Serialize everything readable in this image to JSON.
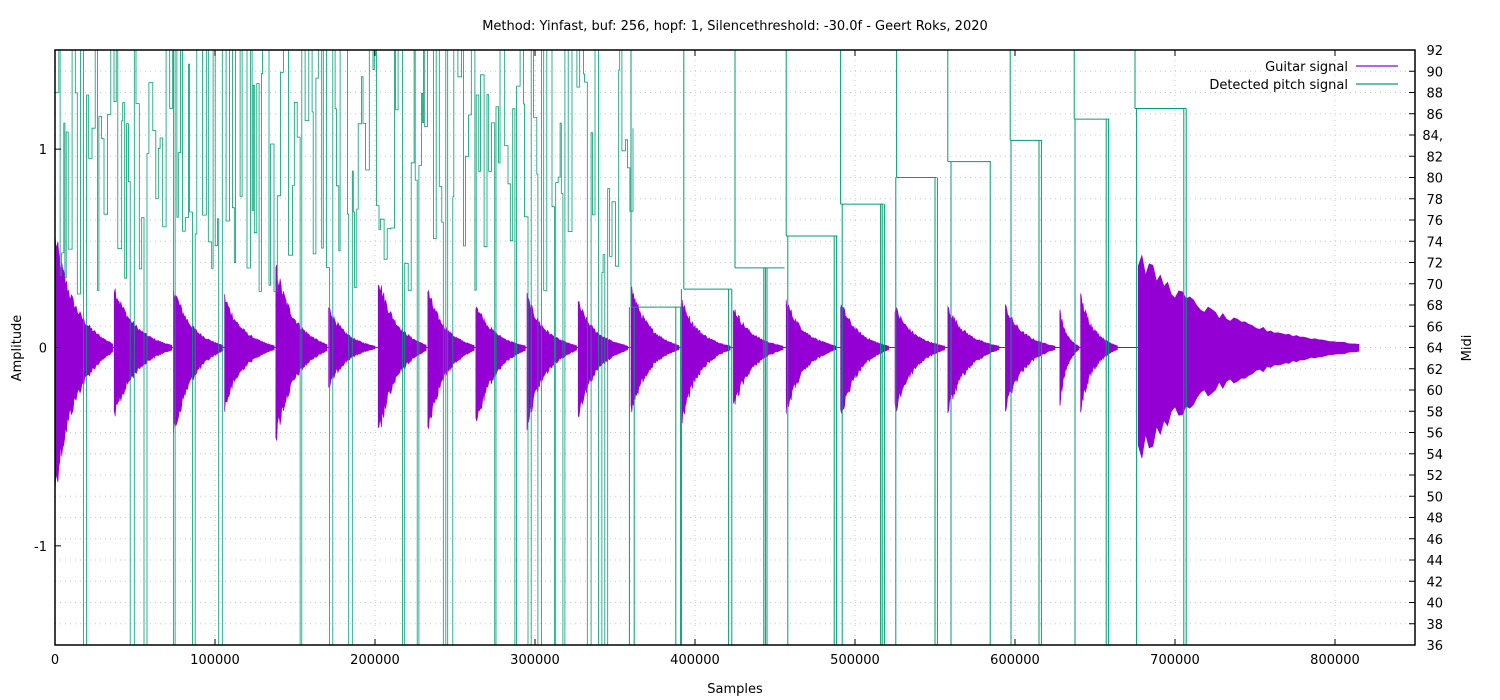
{
  "chart_data": {
    "type": "line",
    "title": "Method: Yinfast, buf: 256, hopf: 1, Silencethreshold: -30.0f - Geert Roks, 2020",
    "xlabel": "Samples",
    "ylabel": "Amplitude",
    "y2label": "Midi",
    "xlim": [
      0,
      850000
    ],
    "ylim": [
      -1.5,
      1.5
    ],
    "y2lim": [
      36,
      92
    ],
    "x_ticks": [
      0,
      100000,
      200000,
      300000,
      400000,
      500000,
      600000,
      700000,
      800000
    ],
    "x_tick_labels": [
      "0",
      "100000",
      "200000",
      "300000",
      "400000",
      "500000",
      "600000",
      "700000",
      "800000"
    ],
    "y_ticks": [
      -1,
      0,
      1
    ],
    "y_tick_labels": [
      "-1",
      "0",
      "1"
    ],
    "y2_ticks": [
      36,
      38,
      40,
      42,
      44,
      46,
      48,
      50,
      52,
      54,
      56,
      58,
      60,
      62,
      64,
      66,
      68,
      70,
      72,
      74,
      76,
      78,
      80,
      82,
      84,
      86,
      88,
      90,
      92
    ],
    "y2_tick_labels": [
      "36",
      "38",
      "40",
      "42",
      "44",
      "46",
      "48",
      "50",
      "52",
      "54",
      "56",
      "58",
      "60",
      "62",
      "64",
      "66",
      "68",
      "70",
      "72",
      "74",
      "76",
      "78",
      "80",
      "82",
      "84,",
      "86",
      "88",
      "90",
      "92"
    ],
    "grid": true,
    "legend_position": "top-right",
    "series": [
      {
        "name": "Guitar signal",
        "color": "#9400d3",
        "axis": "y",
        "style": "filled-envelope",
        "notes": [
          {
            "onset": 0,
            "max": 0.55,
            "min": -0.7,
            "end": 36000
          },
          {
            "onset": 37000,
            "max": 0.3,
            "min": -0.35,
            "end": 73000
          },
          {
            "onset": 74000,
            "max": 0.3,
            "min": -0.45,
            "end": 105000
          },
          {
            "onset": 106000,
            "max": 0.25,
            "min": -0.3,
            "end": 137000
          },
          {
            "onset": 138000,
            "max": 0.4,
            "min": -0.45,
            "end": 170000
          },
          {
            "onset": 171000,
            "max": 0.2,
            "min": -0.2,
            "end": 200000
          },
          {
            "onset": 202000,
            "max": 0.35,
            "min": -0.45,
            "end": 232000
          },
          {
            "onset": 233000,
            "max": 0.28,
            "min": -0.4,
            "end": 262000
          },
          {
            "onset": 263000,
            "max": 0.22,
            "min": -0.4,
            "end": 294000
          },
          {
            "onset": 295000,
            "max": 0.25,
            "min": -0.38,
            "end": 326000
          },
          {
            "onset": 327000,
            "max": 0.22,
            "min": -0.33,
            "end": 358000
          },
          {
            "onset": 360000,
            "max": 0.3,
            "min": -0.32,
            "end": 390000
          },
          {
            "onset": 392000,
            "max": 0.22,
            "min": -0.35,
            "end": 422000
          },
          {
            "onset": 424000,
            "max": 0.2,
            "min": -0.3,
            "end": 455000
          },
          {
            "onset": 457000,
            "max": 0.23,
            "min": -0.32,
            "end": 488000
          },
          {
            "onset": 491000,
            "max": 0.22,
            "min": -0.34,
            "end": 521000
          },
          {
            "onset": 525000,
            "max": 0.2,
            "min": -0.32,
            "end": 556000
          },
          {
            "onset": 558000,
            "max": 0.2,
            "min": -0.32,
            "end": 590000
          },
          {
            "onset": 594000,
            "max": 0.2,
            "min": -0.3,
            "end": 625000
          },
          {
            "onset": 628000,
            "max": 0.18,
            "min": -0.28,
            "end": 640000
          },
          {
            "onset": 641000,
            "max": 0.25,
            "min": -0.3,
            "end": 664000
          },
          {
            "onset": 677000,
            "max": 0.45,
            "min": -0.54,
            "end": 815000
          }
        ]
      },
      {
        "name": "Detected pitch signal",
        "color": "#009e73",
        "axis": "y2",
        "style": "step",
        "noisy_region": [
          0,
          360000
        ],
        "steps": [
          {
            "x0": 360000,
            "x1": 392000,
            "midi": 67.8,
            "spikes": [
              359000,
              362000,
              388000,
              391000
            ]
          },
          {
            "x0": 393000,
            "x1": 423000,
            "midi": 69.5,
            "spikes": [
              391500,
              421000,
              423000
            ]
          },
          {
            "x0": 425000,
            "x1": 456000,
            "midi": 71.5,
            "spikes": [
              443000,
              444000,
              445000
            ]
          },
          {
            "x0": 457000,
            "x1": 489000,
            "midi": 74.5,
            "spikes": [
              458000,
              487000,
              488500
            ]
          },
          {
            "x0": 491000,
            "x1": 518000,
            "midi": 77.5,
            "spikes": [
              492000,
              516000,
              517000,
              518500
            ]
          },
          {
            "x0": 526000,
            "x1": 551000,
            "midi": 80.0,
            "spikes": [
              525500,
              550000,
              551500
            ]
          },
          {
            "x0": 558000,
            "x1": 585000,
            "midi": 81.5,
            "spikes": [
              560000,
              584500
            ]
          },
          {
            "x0": 597000,
            "x1": 617000,
            "midi": 83.5,
            "spikes": [
              597500,
              615000,
              616500
            ]
          },
          {
            "x0": 637000,
            "x1": 659000,
            "midi": 85.5,
            "spikes": [
              637500,
              657000,
              658500
            ]
          },
          {
            "x0": 675000,
            "x1": 707000,
            "midi": 86.5,
            "spikes": [
              676000,
              705500,
              707000
            ]
          }
        ]
      }
    ]
  }
}
